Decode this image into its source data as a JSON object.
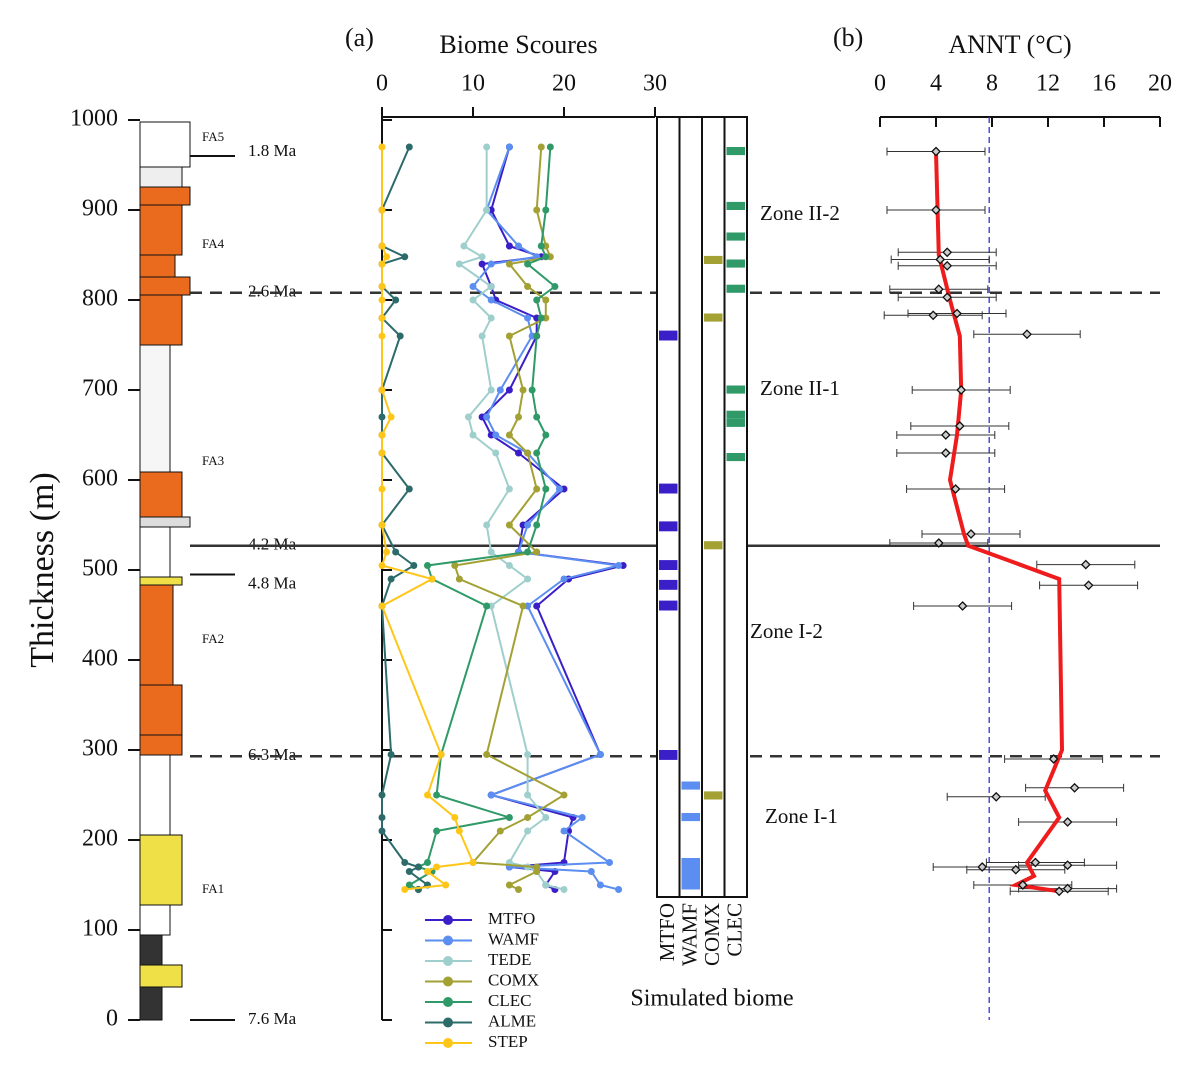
{
  "thickness_axis": {
    "label": "Thickness (m)",
    "ylim": [
      0,
      1000
    ],
    "yticks": [
      0,
      100,
      200,
      300,
      400,
      500,
      600,
      700,
      800,
      900,
      1000
    ]
  },
  "lithology": {
    "facies": [
      "FA5",
      "FA4",
      "FA3",
      "FA2",
      "FA1"
    ]
  },
  "ages": [
    {
      "label": "1.8 Ma",
      "thickness": 960
    },
    {
      "label": "2.6 Ma",
      "thickness": 808,
      "line": "dashed"
    },
    {
      "label": "4.2 Ma",
      "thickness": 527,
      "line": "solid"
    },
    {
      "label": "4.8 Ma",
      "thickness": 495
    },
    {
      "label": "6.3 Ma",
      "thickness": 293,
      "line": "dashed"
    },
    {
      "label": "7.6 Ma",
      "thickness": 0
    }
  ],
  "zones": [
    "Zone II-2",
    "Zone II-1",
    "Zone I-2",
    "Zone I-1"
  ],
  "chart_data": [
    {
      "type": "line",
      "panel": "(a)",
      "title": "Biome Scoures",
      "xlim": [
        0,
        30
      ],
      "xticks": [
        0,
        10,
        20,
        30
      ],
      "thickness": [
        970,
        900,
        860,
        848,
        840,
        815,
        800,
        780,
        760,
        700,
        670,
        650,
        630,
        590,
        550,
        520,
        505,
        490,
        460,
        295,
        250,
        225,
        210,
        175,
        170,
        165,
        150,
        145
      ],
      "series": [
        {
          "name": "MTFO",
          "color": "#3a1ec8",
          "values": [
            14,
            12,
            14,
            17.5,
            11,
            12,
            12.5,
            17,
            17,
            14,
            11,
            12,
            15,
            20,
            15.5,
            15,
            26.5,
            20.5,
            17,
            24,
            12,
            21,
            20.5,
            20,
            14,
            19,
            18,
            19
          ]
        },
        {
          "name": "WAMF",
          "color": "#5b8ef0",
          "values": [
            14,
            11.5,
            15,
            17,
            12,
            10,
            12,
            16,
            16.5,
            13,
            11.5,
            12.5,
            16,
            19.5,
            16,
            15,
            26,
            20,
            16,
            24,
            12,
            22,
            20,
            25,
            14,
            23,
            24,
            26
          ]
        },
        {
          "name": "TEDE",
          "color": "#9fcfcc",
          "values": [
            11.5,
            11.5,
            9,
            11,
            8.5,
            12,
            10,
            12,
            11,
            12,
            9.5,
            10,
            12.5,
            14,
            11.5,
            12,
            14,
            16,
            12,
            16,
            16,
            18,
            16,
            14,
            16,
            17,
            18,
            20
          ]
        },
        {
          "name": "COMX",
          "color": "#a3a134",
          "values": [
            17.5,
            17,
            18,
            18.5,
            14,
            16,
            18,
            18,
            14,
            15.5,
            15,
            14,
            16,
            17,
            14,
            17,
            8,
            8.5,
            15.5,
            11.5,
            20,
            16,
            13,
            10,
            17,
            17,
            14,
            15
          ]
        },
        {
          "name": "CLEC",
          "color": "#2f9a68",
          "values": [
            18.5,
            18,
            17.5,
            18,
            16,
            19,
            17,
            17.5,
            17,
            16.5,
            17,
            18,
            17,
            18,
            17,
            16,
            5,
            5.5,
            11.5,
            6.5,
            6,
            14,
            6,
            5,
            4,
            5.5,
            3,
            4
          ]
        },
        {
          "name": "ALME",
          "color": "#2d6b6b",
          "values": [
            3,
            0,
            0,
            2.5,
            0,
            0,
            1.5,
            0,
            2,
            0,
            0,
            0,
            0,
            3,
            0,
            1.5,
            3.5,
            1,
            0,
            1,
            0,
            0,
            0,
            2.5,
            4,
            3,
            5,
            4
          ]
        },
        {
          "name": "STEP",
          "color": "#ffc61a",
          "values": [
            0,
            0,
            0,
            0.5,
            0,
            0,
            0,
            0,
            0,
            0,
            1,
            0,
            0,
            0,
            0,
            0.5,
            0,
            5.5,
            0,
            6.5,
            5,
            8,
            8.5,
            10,
            6,
            5,
            7,
            2.5
          ]
        }
      ]
    },
    {
      "type": "bar",
      "title": "Simulated biome",
      "categories": [
        "MTFO",
        "WAMF",
        "COMX",
        "CLEC"
      ],
      "colors": [
        "#3a1ec8",
        "#5b8ef0",
        "#a3a134",
        "#2f9a68"
      ],
      "bars": [
        [
          {
            "from": 755,
            "to": 766
          },
          {
            "from": 585,
            "to": 596
          },
          {
            "from": 543,
            "to": 554
          },
          {
            "from": 500,
            "to": 511
          },
          {
            "from": 478,
            "to": 489
          },
          {
            "from": 455,
            "to": 466
          },
          {
            "from": 289,
            "to": 300
          }
        ],
        [
          {
            "from": 256,
            "to": 265
          },
          {
            "from": 221,
            "to": 230
          },
          {
            "from": 145,
            "to": 180
          }
        ],
        [
          {
            "from": 840,
            "to": 849
          },
          {
            "from": 776,
            "to": 785
          },
          {
            "from": 523,
            "to": 532
          },
          {
            "from": 245,
            "to": 254
          }
        ],
        [
          {
            "from": 961,
            "to": 970
          },
          {
            "from": 900,
            "to": 909
          },
          {
            "from": 866,
            "to": 875
          },
          {
            "from": 836,
            "to": 845
          },
          {
            "from": 808,
            "to": 817
          },
          {
            "from": 696,
            "to": 705
          },
          {
            "from": 668,
            "to": 677
          },
          {
            "from": 659,
            "to": 668
          },
          {
            "from": 621,
            "to": 630
          }
        ]
      ]
    },
    {
      "type": "scatter",
      "panel": "(b)",
      "title": "ANNT (°C)",
      "xlim": [
        0,
        20
      ],
      "xticks": [
        0,
        4,
        8,
        12,
        16,
        20
      ],
      "reference": 7.8,
      "line_color": "#ee1c1c",
      "ref_color": "#3333dd",
      "thickness": [
        965,
        900,
        853,
        845,
        838,
        812,
        803,
        785,
        783,
        762,
        700,
        660,
        650,
        630,
        590,
        540,
        530,
        506,
        483,
        460,
        290,
        258,
        248,
        220,
        175,
        172,
        170,
        167,
        150,
        146,
        143
      ],
      "values": [
        4,
        4,
        4.8,
        4.3,
        4.8,
        4.2,
        4.8,
        5.5,
        3.8,
        10.5,
        5.8,
        5.7,
        4.7,
        4.7,
        5.4,
        6.5,
        4.2,
        14.7,
        14.9,
        5.9,
        12.4,
        13.9,
        8.3,
        13.4,
        11.1,
        13.4,
        7.3,
        9.7,
        10.2,
        13.4,
        12.8
      ],
      "errors": [
        3.5,
        3.5,
        3.5,
        3.5,
        3.5,
        3.5,
        3.5,
        3.5,
        3.5,
        3.8,
        3.5,
        3.5,
        3.5,
        3.5,
        3.5,
        3.5,
        3.5,
        3.5,
        3.5,
        3.5,
        3.5,
        3.5,
        3.5,
        3.5,
        3.5,
        3.5,
        3.5,
        3.5,
        3.5,
        3.5,
        3.5
      ],
      "curve": {
        "thickness": [
          965,
          850,
          800,
          760,
          700,
          650,
          600,
          540,
          527,
          490,
          300,
          255,
          225,
          175,
          160,
          150,
          143
        ],
        "values": [
          4,
          4.2,
          5,
          5.7,
          5.8,
          5.5,
          5,
          6,
          6.3,
          12.8,
          13,
          11.8,
          12.8,
          10.5,
          11,
          9.7,
          12.8
        ]
      }
    }
  ]
}
